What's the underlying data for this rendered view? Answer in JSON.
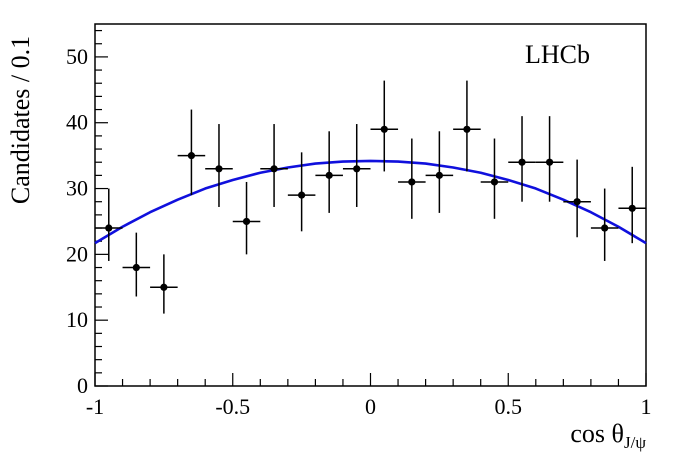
{
  "chart_data": {
    "type": "scatter",
    "experiment_label": "LHCb",
    "xlabel": "cos θ",
    "xlabel_sub": "J/ψ",
    "ylabel": "Candidates / 0.1",
    "xlim": [
      -1,
      1
    ],
    "ylim": [
      0,
      55
    ],
    "xticks": [
      -1,
      -0.5,
      0,
      0.5,
      1
    ],
    "xtick_labels": [
      "-1",
      "-0.5",
      "0",
      "0.5",
      "1"
    ],
    "yticks": [
      0,
      10,
      20,
      30,
      40,
      50
    ],
    "ytick_labels": [
      "0",
      "10",
      "20",
      "30",
      "40",
      "50"
    ],
    "grid": false,
    "series": [
      {
        "kind": "points_with_errors",
        "color": "#000000",
        "x": [
          -0.95,
          -0.85,
          -0.75,
          -0.65,
          -0.55,
          -0.45,
          -0.35,
          -0.25,
          -0.15,
          -0.05,
          0.05,
          0.15,
          0.25,
          0.35,
          0.45,
          0.55,
          0.65,
          0.75,
          0.85,
          0.95
        ],
        "y": [
          24,
          18,
          15,
          35,
          33,
          25,
          33,
          29,
          32,
          33,
          39,
          31,
          32,
          39,
          31,
          34,
          34,
          28,
          24,
          27
        ],
        "xerr": 0.05,
        "yerr_up": [
          6,
          5.3,
          5,
          7,
          6.8,
          6,
          6.8,
          6.5,
          6.7,
          6.8,
          7.4,
          6.6,
          6.7,
          7.4,
          6.6,
          7,
          7,
          6.4,
          6,
          6.3
        ],
        "yerr_down": [
          5,
          4.4,
          4,
          6,
          5.8,
          5,
          5.8,
          5.5,
          5.7,
          5.8,
          6.4,
          5.6,
          5.7,
          6.4,
          5.6,
          6,
          6,
          5.4,
          5,
          5.3
        ]
      },
      {
        "kind": "fit_curve",
        "color": "#1010dd",
        "x": [
          -1.0,
          -0.9,
          -0.8,
          -0.7,
          -0.6,
          -0.5,
          -0.4,
          -0.3,
          -0.2,
          -0.1,
          0.0,
          0.1,
          0.2,
          0.3,
          0.4,
          0.5,
          0.6,
          0.7,
          0.8,
          0.9,
          1.0
        ],
        "y": [
          21.7,
          24.2,
          26.4,
          28.3,
          30.0,
          31.3,
          32.4,
          33.2,
          33.8,
          34.1,
          34.2,
          34.1,
          33.8,
          33.2,
          32.4,
          31.3,
          30.0,
          28.3,
          26.4,
          24.2,
          21.7
        ]
      }
    ]
  }
}
